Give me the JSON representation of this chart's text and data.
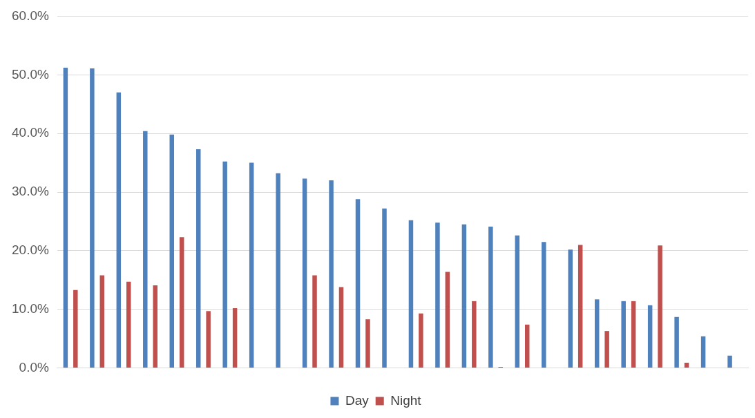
{
  "chart_data": {
    "type": "bar",
    "categories": [
      null,
      null,
      null,
      null,
      null,
      null,
      null,
      null,
      null,
      null,
      null,
      null,
      null,
      null,
      null,
      null,
      null,
      null,
      null,
      null,
      null,
      null,
      null,
      null,
      null,
      null
    ],
    "series": [
      {
        "name": "Day",
        "color": "#4f81bd",
        "values": [
          51.2,
          51.1,
          47.0,
          40.4,
          39.8,
          37.3,
          35.2,
          35.0,
          33.2,
          32.3,
          32.0,
          28.8,
          27.2,
          25.2,
          24.8,
          24.5,
          24.1,
          22.6,
          21.5,
          20.2,
          11.7,
          11.4,
          10.7,
          8.7,
          5.4,
          2.1
        ]
      },
      {
        "name": "Night",
        "color": "#c0504d",
        "values": [
          13.3,
          15.8,
          14.7,
          14.1,
          22.3,
          9.7,
          10.2,
          null,
          null,
          15.8,
          13.8,
          8.3,
          null,
          9.3,
          16.4,
          11.4,
          0.2,
          7.4,
          null,
          21.0,
          6.3,
          11.4,
          20.9,
          0.9,
          null,
          null
        ]
      }
    ],
    "ylim": [
      0,
      60
    ],
    "yticks": [
      {
        "value": 0,
        "label": "0.0%"
      },
      {
        "value": 10,
        "label": "10.0%"
      },
      {
        "value": 20,
        "label": "20.0%"
      },
      {
        "value": 30,
        "label": "30.0%"
      },
      {
        "value": 40,
        "label": "40.0%"
      },
      {
        "value": 50,
        "label": "50.0%"
      },
      {
        "value": 60,
        "label": "60.0%"
      }
    ],
    "grid": "y",
    "legend": "bottom"
  }
}
